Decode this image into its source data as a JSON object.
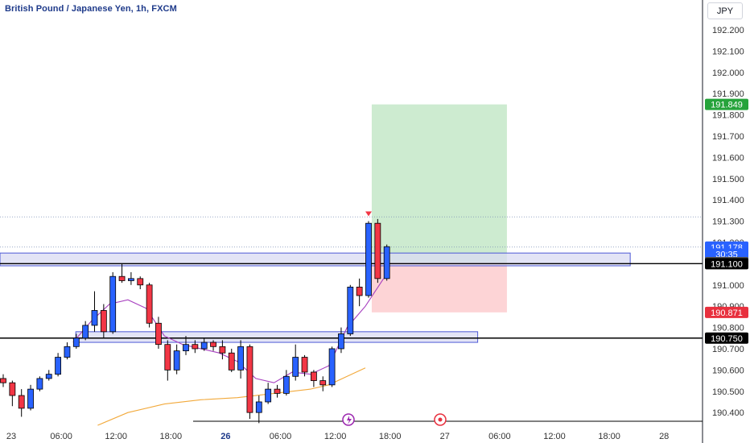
{
  "title": "British Pound / Japanese Yen, 1h, FXCM",
  "currency": "JPY",
  "colors": {
    "up": "#2962ff",
    "down": "#f23645",
    "profit_zone": "#cdebd0",
    "loss_zone": "#fdd4d6",
    "zone_fill": "#d9dbf3",
    "zone_border": "#4c58d6",
    "ema_short": "#a73fbf",
    "ema_long": "#f2a93b",
    "black": "#000000",
    "green": "#26a33b",
    "red": "#e8303e"
  },
  "chart_data": {
    "type": "candlestick",
    "title": "British Pound / Japanese Yen, 1h, FXCM",
    "y_axis": {
      "ticks": [
        190.4,
        190.5,
        190.6,
        190.7,
        190.8,
        190.9,
        191.0,
        191.1,
        191.2,
        191.3,
        191.4,
        191.5,
        191.6,
        191.7,
        191.8,
        191.9,
        192.0,
        192.1,
        192.2
      ],
      "range": [
        190.34,
        192.34
      ],
      "position": "right"
    },
    "x_axis": {
      "labels": [
        "23",
        "06:00",
        "12:00",
        "18:00",
        "26",
        "06:00",
        "12:00",
        "18:00",
        "27",
        "06:00",
        "12:00",
        "18:00",
        "28"
      ],
      "label_index": [
        0,
        6,
        12,
        18,
        24,
        30,
        36,
        42,
        48,
        54,
        60,
        66,
        72
      ],
      "bold_labels": [
        "26"
      ]
    },
    "candles": [
      [
        190.56,
        190.54,
        190.58,
        190.52
      ],
      [
        190.54,
        190.48,
        190.55,
        190.43
      ],
      [
        190.48,
        190.42,
        190.51,
        190.38
      ],
      [
        190.42,
        190.51,
        190.53,
        190.41
      ],
      [
        190.51,
        190.56,
        190.57,
        190.5
      ],
      [
        190.56,
        190.58,
        190.6,
        190.55
      ],
      [
        190.58,
        190.66,
        190.68,
        190.57
      ],
      [
        190.66,
        190.71,
        190.73,
        190.65
      ],
      [
        190.71,
        190.75,
        190.77,
        190.7
      ],
      [
        190.75,
        190.81,
        190.83,
        190.74
      ],
      [
        190.81,
        190.88,
        190.97,
        190.78
      ],
      [
        190.88,
        190.78,
        190.91,
        190.75
      ],
      [
        190.78,
        191.04,
        191.06,
        190.77
      ],
      [
        191.04,
        191.02,
        191.1,
        191.01
      ],
      [
        191.02,
        191.03,
        191.06,
        191.0
      ],
      [
        191.03,
        191.0,
        191.04,
        190.98
      ],
      [
        191.0,
        190.82,
        191.01,
        190.8
      ],
      [
        190.82,
        190.72,
        190.85,
        190.7
      ],
      [
        190.72,
        190.6,
        190.74,
        190.55
      ],
      [
        190.6,
        190.69,
        190.72,
        190.58
      ],
      [
        190.69,
        190.72,
        190.76,
        190.67
      ],
      [
        190.72,
        190.7,
        190.74,
        190.68
      ],
      [
        190.7,
        190.73,
        190.75,
        190.69
      ],
      [
        190.73,
        190.71,
        190.74,
        190.69
      ],
      [
        190.71,
        190.68,
        190.74,
        190.65
      ],
      [
        190.68,
        190.6,
        190.7,
        190.59
      ],
      [
        190.6,
        190.71,
        190.74,
        190.56
      ],
      [
        190.71,
        190.4,
        190.72,
        190.37
      ],
      [
        190.4,
        190.45,
        190.48,
        190.35
      ],
      [
        190.45,
        190.51,
        190.54,
        190.44
      ],
      [
        190.51,
        190.49,
        190.53,
        190.47
      ],
      [
        190.49,
        190.57,
        190.6,
        190.48
      ],
      [
        190.57,
        190.66,
        190.72,
        190.55
      ],
      [
        190.66,
        190.59,
        190.67,
        190.57
      ],
      [
        190.59,
        190.55,
        190.6,
        190.52
      ],
      [
        190.55,
        190.53,
        190.57,
        190.5
      ],
      [
        190.53,
        190.7,
        190.71,
        190.52
      ],
      [
        190.7,
        190.77,
        190.8,
        190.68
      ],
      [
        190.77,
        190.99,
        191.0,
        190.76
      ],
      [
        190.99,
        190.95,
        191.03,
        190.9
      ],
      [
        190.95,
        191.29,
        191.3,
        190.94
      ],
      [
        191.29,
        191.03,
        191.31,
        191.01
      ],
      [
        191.03,
        191.18,
        191.19,
        191.02
      ]
    ],
    "ema_short": [
      [
        8,
        190.73
      ],
      [
        10,
        190.83
      ],
      [
        12,
        190.91
      ],
      [
        14,
        190.93
      ],
      [
        16,
        190.89
      ],
      [
        18,
        190.76
      ],
      [
        20,
        190.72
      ],
      [
        22,
        190.7
      ],
      [
        24,
        190.68
      ],
      [
        26,
        190.64
      ],
      [
        28,
        190.56
      ],
      [
        30,
        190.54
      ],
      [
        32,
        190.59
      ],
      [
        34,
        190.58
      ],
      [
        36,
        190.62
      ],
      [
        38,
        190.8
      ],
      [
        40,
        190.9
      ],
      [
        42,
        191.03
      ]
    ],
    "ema_long": [
      [
        10.7,
        190.34
      ],
      [
        14,
        190.4
      ],
      [
        18,
        190.44
      ],
      [
        22,
        190.46
      ],
      [
        26,
        190.47
      ],
      [
        30,
        190.49
      ],
      [
        34,
        190.51
      ],
      [
        36,
        190.53
      ],
      [
        38,
        190.57
      ],
      [
        40,
        190.61
      ]
    ],
    "trade": {
      "take_profit": 191.849,
      "entry": 191.105,
      "stop_loss": 190.871,
      "start_index": 40.7,
      "end_index": 55.5
    },
    "levels": [
      {
        "price": 190.75,
        "style": "solid",
        "start_index": 0
      },
      {
        "price": 191.1,
        "style": "solid",
        "start_index": 0
      },
      {
        "price": 191.178,
        "style": "dotted",
        "start_index": 0
      },
      {
        "price": 191.32,
        "style": "dotted",
        "start_index": 0
      }
    ],
    "zones": [
      {
        "top": 191.15,
        "bottom": 191.09,
        "start_index": 0,
        "end_index": 69
      },
      {
        "top": 190.78,
        "bottom": 190.73,
        "start_index": 8.3,
        "end_index": 52.3
      }
    ],
    "price_labels": [
      {
        "text": "191.849",
        "price": 191.849,
        "bg": "green"
      },
      {
        "text": "191.178",
        "price": 191.178,
        "bg": "up"
      },
      {
        "text": "30:35",
        "price": 191.145,
        "bg": "up"
      },
      {
        "text": "191.105",
        "price": 191.105,
        "bg": "gray"
      },
      {
        "text": "191.100",
        "price": 191.1,
        "bg": "black"
      },
      {
        "text": "190.871",
        "price": 190.871,
        "bg": "red"
      },
      {
        "text": "190.750",
        "price": 190.75,
        "bg": "black"
      }
    ],
    "bottom_markers": [
      "lightning-icon",
      "record-icon"
    ]
  }
}
